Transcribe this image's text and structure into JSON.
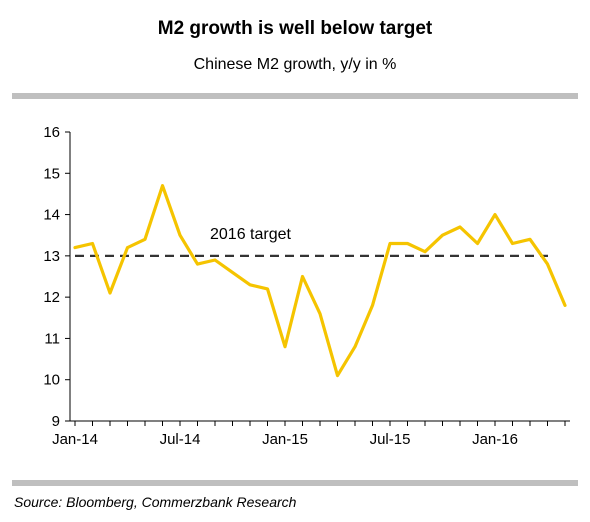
{
  "chart_data": {
    "type": "line",
    "title": "M2 growth is well below target",
    "subtitle": "Chinese M2 growth, y/y in %",
    "xlabel": "",
    "ylabel": "",
    "x_tick_labels": [
      "Jan-14",
      "Jul-14",
      "Jan-15",
      "Jul-15",
      "Jan-16"
    ],
    "ylim": [
      9,
      16
    ],
    "y_ticks": [
      9,
      10,
      11,
      12,
      13,
      14,
      15,
      16
    ],
    "grid": false,
    "series": [
      {
        "color": "#f5c400",
        "x": [
          "2014-01",
          "2014-02",
          "2014-03",
          "2014-04",
          "2014-05",
          "2014-06",
          "2014-07",
          "2014-08",
          "2014-09",
          "2014-10",
          "2014-11",
          "2014-12",
          "2015-01",
          "2015-02",
          "2015-03",
          "2015-04",
          "2015-05",
          "2015-06",
          "2015-07",
          "2015-08",
          "2015-09",
          "2015-10",
          "2015-11",
          "2015-12",
          "2016-01",
          "2016-02",
          "2016-03",
          "2016-04",
          "2016-05"
        ],
        "values": [
          13.2,
          13.3,
          12.1,
          13.2,
          13.4,
          14.7,
          13.5,
          12.8,
          12.9,
          12.6,
          12.3,
          12.2,
          10.8,
          12.5,
          11.6,
          10.1,
          10.8,
          11.8,
          13.3,
          13.3,
          13.1,
          13.5,
          13.7,
          13.3,
          14.0,
          13.3,
          13.4,
          12.8,
          11.8
        ]
      }
    ],
    "target": {
      "value": 13,
      "label": "2016 target",
      "color": "#333333",
      "style": "dashed"
    }
  },
  "source": "Source: Bloomberg, Commerzbank Research"
}
